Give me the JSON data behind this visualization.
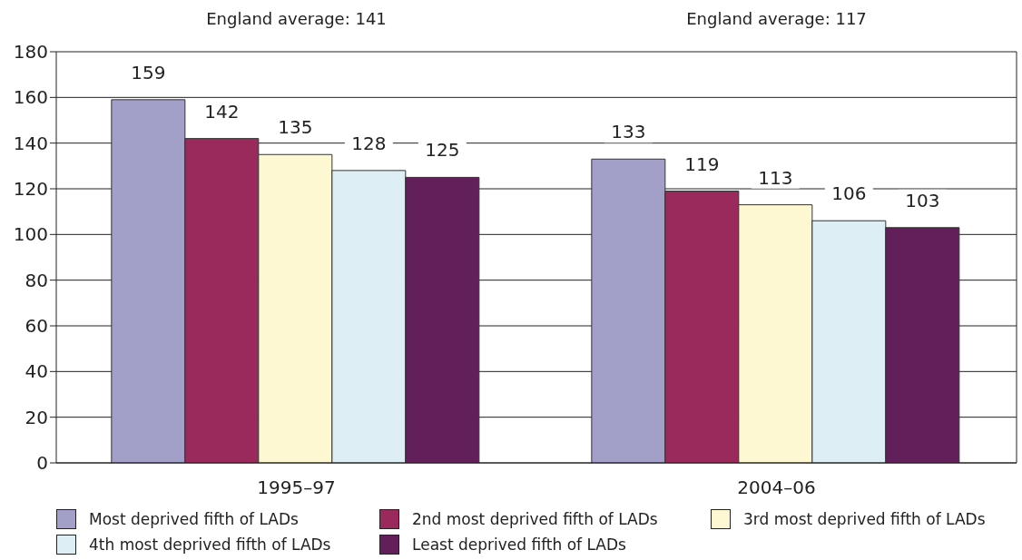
{
  "chart_data": {
    "type": "bar",
    "categories": [
      "1995–97",
      "2004–06"
    ],
    "series": [
      {
        "name": "Most deprived fifth of LADs",
        "color": "#a29fc9",
        "values": [
          159,
          133
        ]
      },
      {
        "name": "2nd most deprived fifth of LADs",
        "color": "#9b2a5c",
        "values": [
          142,
          119
        ]
      },
      {
        "name": "3rd most deprived fifth of LADs",
        "color": "#fef8d2",
        "values": [
          135,
          113
        ]
      },
      {
        "name": "4th most deprived fifth of LADs",
        "color": "#ddeef5",
        "values": [
          128,
          106
        ]
      },
      {
        "name": "Least deprived fifth of LADs",
        "color": "#621f5a",
        "values": [
          125,
          103
        ]
      }
    ],
    "ylim": [
      0,
      180
    ],
    "yticks": [
      0,
      20,
      40,
      60,
      80,
      100,
      120,
      140,
      160,
      180
    ],
    "grid": "y",
    "legend": "bottom",
    "data_labels": true,
    "annotations": [
      "England average: 141",
      "England average: 117"
    ]
  }
}
